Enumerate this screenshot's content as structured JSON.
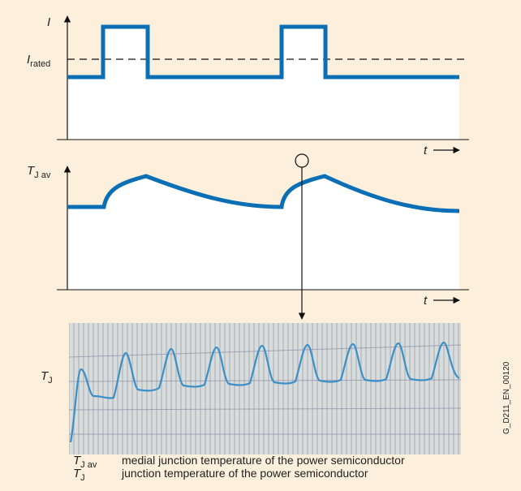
{
  "current_plot": {
    "y_label": "I",
    "reference_label": {
      "symbol": "I",
      "subscript": "rated"
    },
    "x_label": "t"
  },
  "temperature_plot": {
    "y_label": {
      "symbol": "T",
      "subscript": "J av"
    },
    "x_label": "t"
  },
  "recording": {
    "y_label": {
      "symbol": "T",
      "subscript": "J"
    }
  },
  "legend": [
    {
      "symbol": "T",
      "subscript": "J av",
      "text": "medial junction temperature of the power semiconductor"
    },
    {
      "symbol": "T",
      "subscript": "J",
      "text": "junction temperature of the power semiconductor"
    }
  ],
  "figure_id": "G_D211_EN_00120"
}
